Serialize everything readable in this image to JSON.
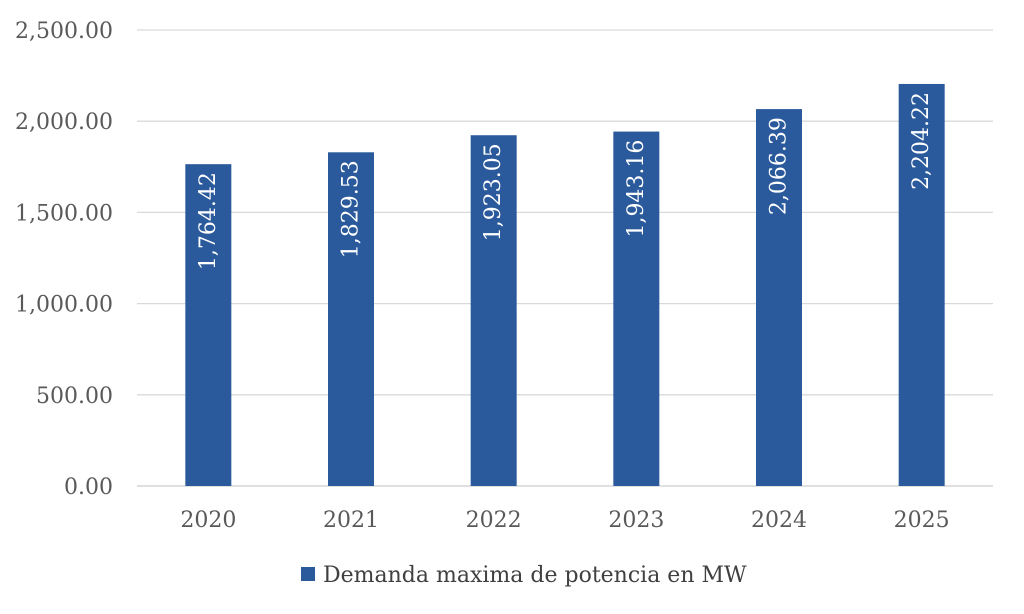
{
  "chart_data": {
    "type": "bar",
    "categories": [
      "2020",
      "2021",
      "2022",
      "2023",
      "2024",
      "2025"
    ],
    "series": [
      {
        "name": "Demanda maxima de potencia en MW",
        "values": [
          1764.42,
          1829.53,
          1923.05,
          1943.16,
          2066.39,
          2204.22
        ],
        "data_labels": [
          "1,764.42",
          "1,829.53",
          "1,923.05",
          "1,943.16",
          "2,066.39",
          "2,204.22"
        ],
        "color": "#2a5a9c"
      }
    ],
    "y_ticks": [
      {
        "value": 0,
        "label": "0.00"
      },
      {
        "value": 500,
        "label": "500.00"
      },
      {
        "value": 1000,
        "label": "1,000.00"
      },
      {
        "value": 1500,
        "label": "1,500.00"
      },
      {
        "value": 2000,
        "label": "2,000.00"
      },
      {
        "value": 2500,
        "label": "2,500.00"
      }
    ],
    "ylim": [
      0,
      2500
    ],
    "grid": true,
    "legend_position": "bottom",
    "title": "",
    "xlabel": "",
    "ylabel": ""
  },
  "colors": {
    "bar": "#2a5a9c",
    "grid": "#d9d9d9",
    "axis_text": "#595959"
  }
}
